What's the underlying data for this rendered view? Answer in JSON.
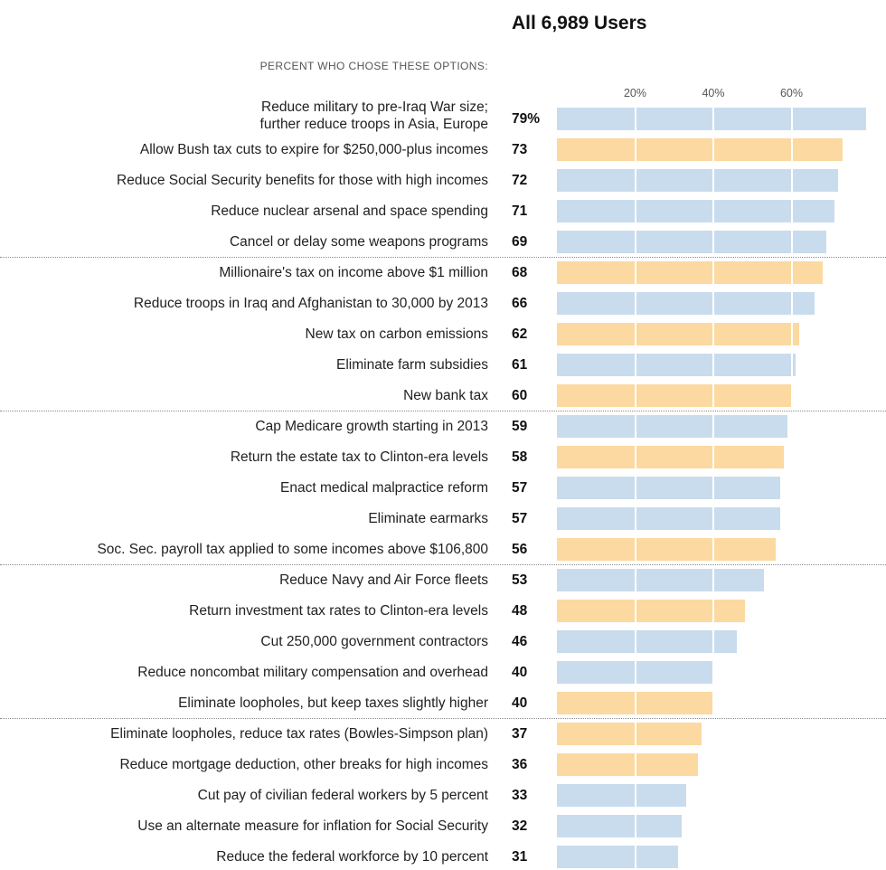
{
  "chart_data": {
    "type": "bar",
    "orientation": "horizontal",
    "title": "All 6,989 Users",
    "subtitle": "PERCENT WHO CHOSE THESE OPTIONS:",
    "xlim": [
      0,
      80
    ],
    "ticks": [
      {
        "value": 20,
        "label": "20%"
      },
      {
        "value": 40,
        "label": "40%"
      },
      {
        "value": 60,
        "label": "60%"
      }
    ],
    "colors": {
      "blue": "#c9dced",
      "orange": "#fbd9a0"
    },
    "rows": [
      {
        "label": [
          "Reduce military to pre-Iraq War size;",
          "further reduce troops in Asia, Europe"
        ],
        "value": 79,
        "value_label": "79%",
        "color": "blue"
      },
      {
        "label": [
          "Allow Bush tax cuts to expire for $250,000-plus incomes"
        ],
        "value": 73,
        "value_label": "73",
        "color": "orange"
      },
      {
        "label": [
          "Reduce Social Security benefits for those with high incomes"
        ],
        "value": 72,
        "value_label": "72",
        "color": "blue"
      },
      {
        "label": [
          "Reduce nuclear arsenal and space spending"
        ],
        "value": 71,
        "value_label": "71",
        "color": "blue"
      },
      {
        "label": [
          "Cancel or delay some weapons programs"
        ],
        "value": 69,
        "value_label": "69",
        "color": "blue"
      },
      {
        "label": [
          "Millionaire's tax on income above $1 million"
        ],
        "value": 68,
        "value_label": "68",
        "color": "orange"
      },
      {
        "label": [
          "Reduce troops in Iraq and Afghanistan to 30,000 by 2013"
        ],
        "value": 66,
        "value_label": "66",
        "color": "blue"
      },
      {
        "label": [
          "New tax on carbon emissions"
        ],
        "value": 62,
        "value_label": "62",
        "color": "orange"
      },
      {
        "label": [
          "Eliminate farm subsidies"
        ],
        "value": 61,
        "value_label": "61",
        "color": "blue"
      },
      {
        "label": [
          "New bank tax"
        ],
        "value": 60,
        "value_label": "60",
        "color": "orange"
      },
      {
        "label": [
          "Cap Medicare growth starting in 2013"
        ],
        "value": 59,
        "value_label": "59",
        "color": "blue"
      },
      {
        "label": [
          "Return the estate tax to Clinton-era levels"
        ],
        "value": 58,
        "value_label": "58",
        "color": "orange"
      },
      {
        "label": [
          "Enact medical malpractice reform"
        ],
        "value": 57,
        "value_label": "57",
        "color": "blue"
      },
      {
        "label": [
          "Eliminate earmarks"
        ],
        "value": 57,
        "value_label": "57",
        "color": "blue"
      },
      {
        "label": [
          "Soc. Sec. payroll tax applied to some incomes above $106,800"
        ],
        "value": 56,
        "value_label": "56",
        "color": "orange"
      },
      {
        "label": [
          "Reduce Navy and Air Force fleets"
        ],
        "value": 53,
        "value_label": "53",
        "color": "blue"
      },
      {
        "label": [
          "Return investment tax rates to Clinton-era levels"
        ],
        "value": 48,
        "value_label": "48",
        "color": "orange"
      },
      {
        "label": [
          "Cut 250,000 government contractors"
        ],
        "value": 46,
        "value_label": "46",
        "color": "blue"
      },
      {
        "label": [
          "Reduce noncombat military compensation and overhead"
        ],
        "value": 40,
        "value_label": "40",
        "color": "blue"
      },
      {
        "label": [
          "Eliminate loopholes, but keep taxes slightly higher"
        ],
        "value": 40,
        "value_label": "40",
        "color": "orange"
      },
      {
        "label": [
          "Eliminate loopholes, reduce tax rates (Bowles-Simpson plan)"
        ],
        "value": 37,
        "value_label": "37",
        "color": "orange"
      },
      {
        "label": [
          "Reduce mortgage deduction, other breaks for high incomes"
        ],
        "value": 36,
        "value_label": "36",
        "color": "orange"
      },
      {
        "label": [
          "Cut pay of civilian federal workers by 5 percent"
        ],
        "value": 33,
        "value_label": "33",
        "color": "blue"
      },
      {
        "label": [
          "Use an alternate measure for inflation for Social Security"
        ],
        "value": 32,
        "value_label": "32",
        "color": "blue"
      },
      {
        "label": [
          "Reduce the federal workforce by 10 percent"
        ],
        "value": 31,
        "value_label": "31",
        "color": "blue"
      }
    ],
    "groups": [
      5,
      5,
      5,
      5,
      5
    ],
    "legend": "none",
    "grid": true
  }
}
